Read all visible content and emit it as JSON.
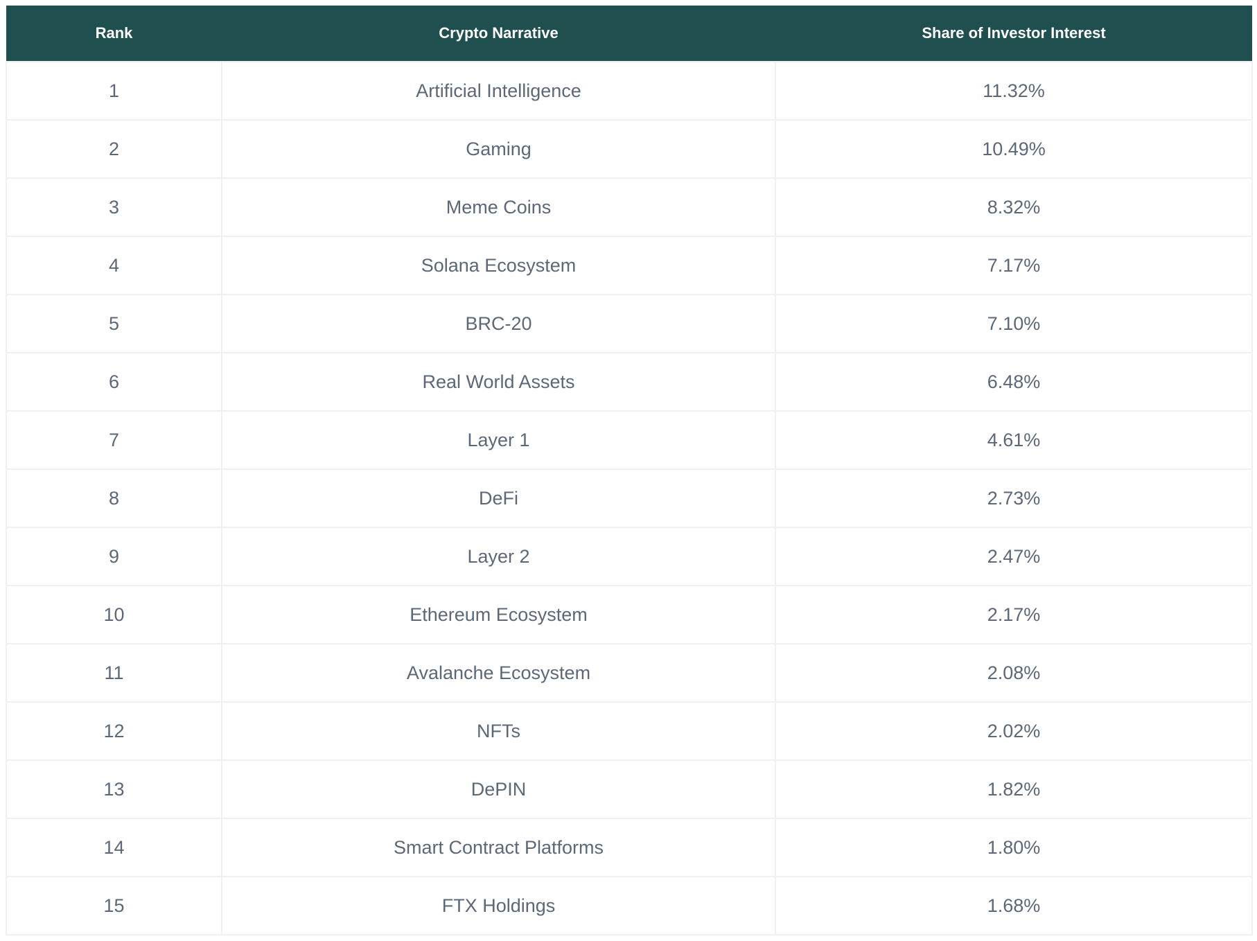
{
  "table": {
    "columns": [
      {
        "label": "Rank"
      },
      {
        "label": "Crypto Narrative"
      },
      {
        "label": "Share of Investor Interest"
      }
    ],
    "rows": [
      {
        "rank": "1",
        "narrative": "Artificial Intelligence",
        "share": "11.32%"
      },
      {
        "rank": "2",
        "narrative": "Gaming",
        "share": "10.49%"
      },
      {
        "rank": "3",
        "narrative": "Meme Coins",
        "share": "8.32%"
      },
      {
        "rank": "4",
        "narrative": "Solana Ecosystem",
        "share": "7.17%"
      },
      {
        "rank": "5",
        "narrative": "BRC-20",
        "share": "7.10%"
      },
      {
        "rank": "6",
        "narrative": "Real World Assets",
        "share": "6.48%"
      },
      {
        "rank": "7",
        "narrative": "Layer 1",
        "share": "4.61%"
      },
      {
        "rank": "8",
        "narrative": "DeFi",
        "share": "2.73%"
      },
      {
        "rank": "9",
        "narrative": "Layer 2",
        "share": "2.47%"
      },
      {
        "rank": "10",
        "narrative": "Ethereum Ecosystem",
        "share": "2.17%"
      },
      {
        "rank": "11",
        "narrative": "Avalanche Ecosystem",
        "share": "2.08%"
      },
      {
        "rank": "12",
        "narrative": "NFTs",
        "share": "2.02%"
      },
      {
        "rank": "13",
        "narrative": "DePIN",
        "share": "1.82%"
      },
      {
        "rank": "14",
        "narrative": "Smart Contract Platforms",
        "share": "1.80%"
      },
      {
        "rank": "15",
        "narrative": "FTX Holdings",
        "share": "1.68%"
      }
    ]
  },
  "colors": {
    "header_bg": "#1f4f4e",
    "header_text": "#ffffff",
    "body_text": "#5c6878",
    "row_bg": "#ffffff",
    "border": "#eef0f3"
  },
  "chart_data": {
    "type": "table",
    "title": "",
    "columns": [
      "Rank",
      "Crypto Narrative",
      "Share of Investor Interest"
    ],
    "rows": [
      [
        1,
        "Artificial Intelligence",
        11.32
      ],
      [
        2,
        "Gaming",
        10.49
      ],
      [
        3,
        "Meme Coins",
        8.32
      ],
      [
        4,
        "Solana Ecosystem",
        7.17
      ],
      [
        5,
        "BRC-20",
        7.1
      ],
      [
        6,
        "Real World Assets",
        6.48
      ],
      [
        7,
        "Layer 1",
        4.61
      ],
      [
        8,
        "DeFi",
        2.73
      ],
      [
        9,
        "Layer 2",
        2.47
      ],
      [
        10,
        "Ethereum Ecosystem",
        2.17
      ],
      [
        11,
        "Avalanche Ecosystem",
        2.08
      ],
      [
        12,
        "NFTs",
        2.02
      ],
      [
        13,
        "DePIN",
        1.82
      ],
      [
        14,
        "Smart Contract Platforms",
        1.8
      ],
      [
        15,
        "FTX Holdings",
        1.68
      ]
    ],
    "value_unit": "percent_share_of_investor_interest"
  }
}
